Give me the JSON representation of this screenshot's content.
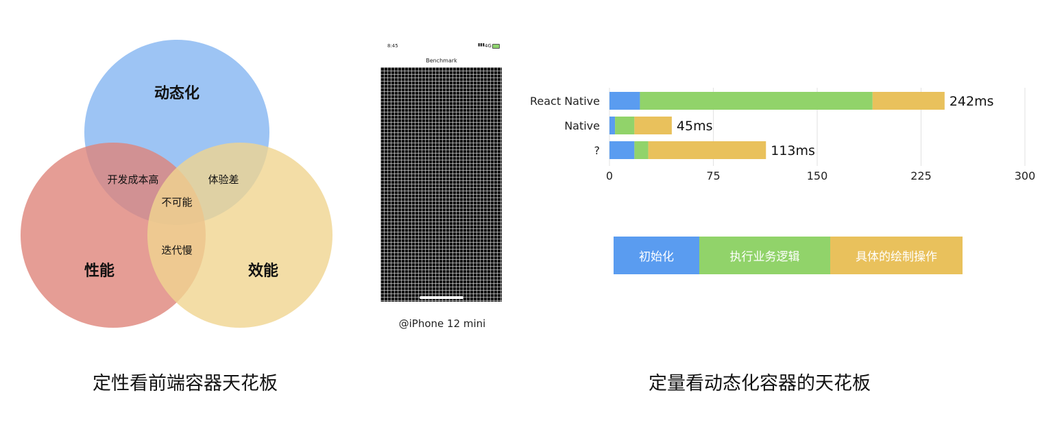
{
  "venn": {
    "circles": [
      {
        "label": "动态化",
        "color": "#8fbcf3"
      },
      {
        "label": "性能",
        "color": "#df847b"
      },
      {
        "label": "效能",
        "color": "#f0d490"
      }
    ],
    "overlaps": {
      "dynamic_performance": "开发成本高",
      "dynamic_efficiency": "体验差",
      "performance_efficiency": "迭代慢",
      "all_three": "不可能"
    },
    "caption": "定性看前端容器天花板"
  },
  "phone": {
    "time": "8:45",
    "status_right": "4G",
    "app_title": "Benchmark",
    "device_label": "@iPhone 12 mini"
  },
  "chart_data": {
    "type": "bar",
    "orientation": "horizontal",
    "stacked": true,
    "categories": [
      "React Native",
      "Native",
      "?"
    ],
    "series": [
      {
        "name": "初始化",
        "color": "#5a9cf0",
        "values": [
          22,
          4,
          18
        ]
      },
      {
        "name": "执行业务逻辑",
        "color": "#91d36a",
        "values": [
          168,
          14,
          10
        ]
      },
      {
        "name": "具体的绘制操作",
        "color": "#e9c15c",
        "values": [
          52,
          27,
          85
        ]
      }
    ],
    "data_labels": [
      "242ms",
      "45ms",
      "113ms"
    ],
    "x_ticks": [
      0,
      75,
      150,
      225,
      300
    ],
    "xlim": [
      0,
      300
    ],
    "grid": true,
    "legend_position": "bottom"
  },
  "caption_right": "定量看动态化容器的天花板"
}
